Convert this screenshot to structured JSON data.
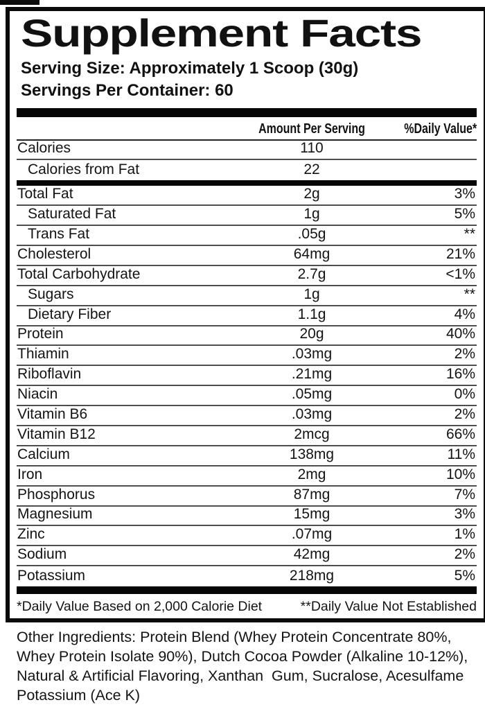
{
  "panel": {
    "title": "Supplement Facts",
    "serving_size": "Serving Size: Approximately 1 Scoop (30g)",
    "servings_per_container": "Servings Per Container: 60"
  },
  "table": {
    "amount_header": "Amount Per Serving",
    "dv_header": "%Daily Value*",
    "rows": [
      {
        "name": "Calories",
        "amount": "110",
        "dv": "",
        "indent": false,
        "thick_after": false
      },
      {
        "name": "Calories from Fat",
        "amount": "22",
        "dv": "",
        "indent": true,
        "thick_after": true
      },
      {
        "name": "Total Fat",
        "amount": "2g",
        "dv": "3%",
        "indent": false,
        "thick_after": false
      },
      {
        "name": "Saturated Fat",
        "amount": "1g",
        "dv": "5%",
        "indent": true,
        "thick_after": false
      },
      {
        "name": "Trans Fat",
        "amount": ".05g",
        "dv": "**",
        "indent": true,
        "thick_after": false
      },
      {
        "name": "Cholesterol",
        "amount": "64mg",
        "dv": "21%",
        "indent": false,
        "thick_after": false
      },
      {
        "name": "Total Carbohydrate",
        "amount": "2.7g",
        "dv": "<1%",
        "indent": false,
        "thick_after": false
      },
      {
        "name": "Sugars",
        "amount": "1g",
        "dv": "**",
        "indent": true,
        "thick_after": false
      },
      {
        "name": "Dietary Fiber",
        "amount": "1.1g",
        "dv": "4%",
        "indent": true,
        "thick_after": false
      },
      {
        "name": "Protein",
        "amount": "20g",
        "dv": "40%",
        "indent": false,
        "thick_after": false
      },
      {
        "name": "Thiamin",
        "amount": ".03mg",
        "dv": "2%",
        "indent": false,
        "thick_after": false
      },
      {
        "name": "Riboflavin",
        "amount": ".21mg",
        "dv": "16%",
        "indent": false,
        "thick_after": false
      },
      {
        "name": "Niacin",
        "amount": ".05mg",
        "dv": "0%",
        "indent": false,
        "thick_after": false
      },
      {
        "name": "Vitamin B6",
        "amount": ".03mg",
        "dv": "2%",
        "indent": false,
        "thick_after": false
      },
      {
        "name": "Vitamin B12",
        "amount": "2mcg",
        "dv": "66%",
        "indent": false,
        "thick_after": false
      },
      {
        "name": "Calcium",
        "amount": "138mg",
        "dv": "11%",
        "indent": false,
        "thick_after": false
      },
      {
        "name": "Iron",
        "amount": "2mg",
        "dv": "10%",
        "indent": false,
        "thick_after": false
      },
      {
        "name": "Phosphorus",
        "amount": "87mg",
        "dv": "7%",
        "indent": false,
        "thick_after": false
      },
      {
        "name": "Magnesium",
        "amount": "15mg",
        "dv": "3%",
        "indent": false,
        "thick_after": false
      },
      {
        "name": "Zinc",
        "amount": ".07mg",
        "dv": "1%",
        "indent": false,
        "thick_after": false
      },
      {
        "name": "Sodium",
        "amount": "42mg",
        "dv": "2%",
        "indent": false,
        "thick_after": false
      },
      {
        "name": "Potassium",
        "amount": "218mg",
        "dv": "5%",
        "indent": false,
        "thick_after": false
      }
    ]
  },
  "footnotes": {
    "daily_value": "*Daily Value Based on 2,000 Calorie Diet",
    "not_established": "**Daily Value Not Established"
  },
  "other_ingredients": {
    "lines": [
      "Other Ingredients: Protein Blend (Whey Protein Concentrate 80%,",
      "Whey Protein Isolate 90%), Dutch Cocoa Powder (Alkaline 10-12%),",
      "Natural & Artificial Flavoring, Xanthan  Gum, Sucralose, Acesulfame",
      "Potassium (Ace K)"
    ]
  },
  "colors": {
    "ink": "#131313",
    "bar": "#060606",
    "thin_rule": "#4d4d4d"
  }
}
